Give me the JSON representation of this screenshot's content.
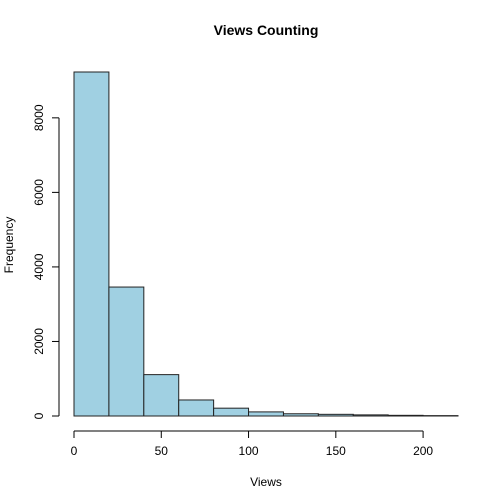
{
  "chart_data": {
    "type": "bar",
    "title": "Views Counting",
    "xlabel": "Views",
    "ylabel": "Frequency",
    "bin_edges": [
      0,
      20,
      40,
      60,
      80,
      100,
      120,
      140,
      160,
      180,
      200,
      220
    ],
    "values": [
      9230,
      3460,
      1110,
      430,
      210,
      110,
      60,
      45,
      30,
      18,
      10
    ],
    "xlim": [
      0,
      220
    ],
    "ylim": [
      0,
      9230
    ],
    "x_ticks": [
      0,
      50,
      100,
      150,
      200
    ],
    "y_ticks": [
      0,
      2000,
      4000,
      6000,
      8000
    ],
    "bar_color": "#A0D0E2",
    "grid": false
  }
}
